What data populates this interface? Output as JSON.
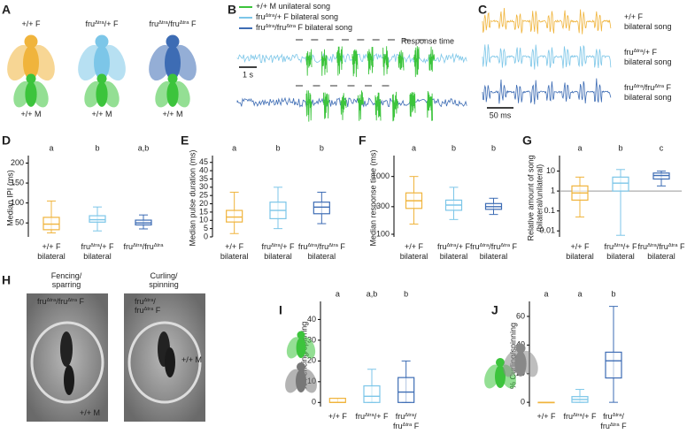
{
  "panels": {
    "A": {
      "letter": "A",
      "male_color": "#3cc43c",
      "flies": [
        {
          "female": [
            [
              "+/+ F"
            ]
          ],
          "male": [
            [
              "+/+ M"
            ]
          ],
          "color": "#f0b43c"
        },
        {
          "female": [
            [
              "fru",
              "Δtra",
              "/+ F"
            ]
          ],
          "male": [
            [
              "+/+ M"
            ]
          ],
          "color": "#7cc6e8"
        },
        {
          "female": [
            [
              "fru",
              "Δtra",
              "/fru",
              "Δtra",
              " F"
            ]
          ],
          "male": [
            [
              "+/+ M"
            ]
          ],
          "color": "#3d6cb4"
        }
      ]
    },
    "B": {
      "letter": "B",
      "annotation": "Response time",
      "scalebar": "1 s",
      "legend": [
        {
          "label": [
            [
              "+/+ M unilateral song"
            ]
          ],
          "color": "#3cc43c"
        },
        {
          "label": [
            [
              "fru",
              "Δtra",
              "/+ F bilateral song"
            ]
          ],
          "color": "#7cc6e8"
        },
        {
          "label": [
            [
              "fru",
              "Δtra",
              "/fru",
              "Δtra",
              " F bilateral song"
            ]
          ],
          "color": "#3d6cb4"
        }
      ]
    },
    "C": {
      "letter": "C",
      "scalebar": "50 ms",
      "traces": [
        {
          "label": [
            [
              "+/+ F"
            ],
            [
              "bilateral song"
            ]
          ],
          "color": "#f0b43c"
        },
        {
          "label": [
            [
              "fru",
              "Δtra",
              "/+ F"
            ],
            [
              "bilateral song"
            ]
          ],
          "color": "#7cc6e8"
        },
        {
          "label": [
            [
              "fru",
              "Δtra",
              "/fru",
              "Δtra",
              " F"
            ],
            [
              "bilateral song"
            ]
          ],
          "color": "#3d6cb4"
        }
      ]
    },
    "H": {
      "letter": "H",
      "photos": [
        {
          "title": [
            [
              "Fencing/"
            ],
            [
              "sparring"
            ]
          ],
          "female": [
            [
              "fru",
              "Δtra",
              "/fru",
              "Δtra",
              " F"
            ]
          ],
          "male": [
            [
              "+/+ M"
            ]
          ]
        },
        {
          "title": [
            [
              "Curling/"
            ],
            [
              "spinning"
            ]
          ],
          "female": [
            [
              "fru",
              "Δtra",
              "/"
            ],
            [
              "fru",
              "Δtra",
              " F"
            ]
          ],
          "male": [
            [
              "+/+ M"
            ]
          ]
        }
      ]
    }
  },
  "chart_data": [
    {
      "panel": "D",
      "type": "box",
      "scale": "linear",
      "ylabel": [
        "Median IPI (ms)"
      ],
      "ylim": [
        15,
        210
      ],
      "yticks": [
        50,
        100,
        150,
        200
      ],
      "categories": [
        [
          [
            "+/+ F"
          ],
          [
            "bilateral"
          ]
        ],
        [
          [
            "fru",
            "Δtra",
            "/+ F"
          ],
          [
            "bilateral"
          ]
        ],
        [
          [
            "fru",
            "Δtra",
            "/fru",
            "Δtra"
          ]
        ]
      ],
      "letters": [
        "a",
        "b",
        "a,b"
      ],
      "colors": [
        "#f0b43c",
        "#7cc6e8",
        "#3d6cb4"
      ],
      "boxes": [
        {
          "min": 25,
          "q1": 33,
          "median": 47,
          "q3": 64,
          "max": 105
        },
        {
          "min": 30,
          "q1": 52,
          "median": 58,
          "q3": 68,
          "max": 90
        },
        {
          "min": 35,
          "q1": 45,
          "median": 50,
          "q3": 57,
          "max": 70
        }
      ]
    },
    {
      "panel": "E",
      "type": "box",
      "scale": "linear",
      "ylabel": [
        "Median pulse duration (ms)"
      ],
      "ylim": [
        0,
        47
      ],
      "yticks": [
        0,
        5,
        10,
        15,
        20,
        25,
        30,
        35,
        40,
        45
      ],
      "categories": [
        [
          [
            "+/+ F"
          ],
          [
            "bilateral"
          ]
        ],
        [
          [
            "fru",
            "Δtra",
            "/+ F"
          ],
          [
            "bilateral"
          ]
        ],
        [
          [
            "fru",
            "Δtra",
            "/fru",
            "Δtra",
            " F"
          ],
          [
            "bilateral"
          ]
        ]
      ],
      "letters": [
        "a",
        "b",
        "b"
      ],
      "colors": [
        "#f0b43c",
        "#7cc6e8",
        "#3d6cb4"
      ],
      "boxes": [
        {
          "min": 2,
          "q1": 9,
          "median": 12,
          "q3": 16,
          "max": 27
        },
        {
          "min": 5,
          "q1": 11,
          "median": 16,
          "q3": 21,
          "max": 30
        },
        {
          "min": 8,
          "q1": 14,
          "median": 18,
          "q3": 21,
          "max": 27
        }
      ]
    },
    {
      "panel": "F",
      "type": "box",
      "scale": "log",
      "ylabel": [
        "Median response time (ms)"
      ],
      "ylim": [
        90,
        2000
      ],
      "yticks": [
        100,
        300,
        1000
      ],
      "categories": [
        [
          [
            "+/+ F"
          ],
          [
            "bilateral"
          ]
        ],
        [
          [
            "fru",
            "Δtra",
            "/+ F"
          ],
          [
            "bilateral"
          ]
        ],
        [
          [
            "fru",
            "Δtra",
            "/fru",
            "Δtra",
            " F"
          ],
          [
            "bilateral"
          ]
        ]
      ],
      "letters": [
        "a",
        "b",
        "b"
      ],
      "colors": [
        "#f0b43c",
        "#7cc6e8",
        "#3d6cb4"
      ],
      "boxes": [
        {
          "min": 150,
          "q1": 280,
          "median": 380,
          "q3": 520,
          "max": 1000
        },
        {
          "min": 180,
          "q1": 260,
          "median": 320,
          "q3": 390,
          "max": 650
        },
        {
          "min": 220,
          "q1": 270,
          "median": 300,
          "q3": 340,
          "max": 420
        }
      ]
    },
    {
      "panel": "G",
      "type": "box",
      "scale": "log",
      "ylabel": [
        "Relative amount of song",
        "(bilateral/unilateral)"
      ],
      "ylim": [
        0.005,
        40
      ],
      "yticks": [
        0.01,
        0.1,
        1,
        10
      ],
      "reference_line": 1,
      "categories": [
        [
          [
            "+/+ F"
          ],
          [
            "bilateral"
          ]
        ],
        [
          [
            "fru",
            "Δtra",
            "/+ F"
          ],
          [
            "bilateral"
          ]
        ],
        [
          [
            "fru",
            "Δtra",
            "/fru",
            "Δtra",
            " F"
          ],
          [
            "bilateral"
          ]
        ]
      ],
      "letters": [
        "a",
        "b",
        "c"
      ],
      "colors": [
        "#f0b43c",
        "#7cc6e8",
        "#3d6cb4"
      ],
      "boxes": [
        {
          "min": 0.05,
          "q1": 0.35,
          "median": 0.8,
          "q3": 1.8,
          "max": 5
        },
        {
          "min": 0.006,
          "q1": 1,
          "median": 2.5,
          "q3": 5,
          "max": 12
        },
        {
          "min": 1.8,
          "q1": 4,
          "median": 6,
          "q3": 8,
          "max": 10
        }
      ]
    },
    {
      "panel": "I",
      "type": "box",
      "scale": "linear",
      "ylabel": [
        "% Fencing/sparring"
      ],
      "ylim": [
        -2,
        47
      ],
      "yticks": [
        0,
        10,
        20,
        30,
        40
      ],
      "categories": [
        [
          [
            "+/+ F"
          ]
        ],
        [
          [
            "fru",
            "Δtra",
            "/+ F"
          ]
        ],
        [
          [
            "fru",
            "Δtra",
            "/"
          ],
          [
            "fru",
            "Δtra",
            " F"
          ]
        ]
      ],
      "letters": [
        "a",
        "a,b",
        "b"
      ],
      "colors": [
        "#f0b43c",
        "#7cc6e8",
        "#3d6cb4"
      ],
      "boxes": [
        {
          "min": 0,
          "q1": 0,
          "median": 0,
          "q3": 2,
          "max": 2
        },
        {
          "min": 0,
          "q1": 0,
          "median": 3,
          "q3": 8,
          "max": 16
        },
        {
          "min": 0,
          "q1": 0,
          "median": 5,
          "q3": 12,
          "max": 20
        }
      ]
    },
    {
      "panel": "J",
      "type": "box",
      "scale": "linear",
      "ylabel": [
        "% Curling/spinning"
      ],
      "ylim": [
        -3,
        68
      ],
      "yticks": [
        0,
        20,
        40,
        60
      ],
      "categories": [
        [
          [
            "+/+ F"
          ]
        ],
        [
          [
            "fru",
            "Δtra",
            "/+ F"
          ]
        ],
        [
          [
            "fru",
            "Δtra",
            "/"
          ],
          [
            "fru",
            "Δtra",
            " F"
          ]
        ]
      ],
      "letters": [
        "a",
        "a",
        "b"
      ],
      "colors": [
        "#f0b43c",
        "#7cc6e8",
        "#3d6cb4"
      ],
      "boxes": [
        {
          "min": 0,
          "q1": 0,
          "median": 0,
          "q3": 0,
          "max": 0
        },
        {
          "min": 0,
          "q1": 0,
          "median": 2,
          "q3": 4,
          "max": 9
        },
        {
          "min": 0,
          "q1": 17,
          "median": 29,
          "q3": 35,
          "max": 67
        }
      ]
    }
  ]
}
